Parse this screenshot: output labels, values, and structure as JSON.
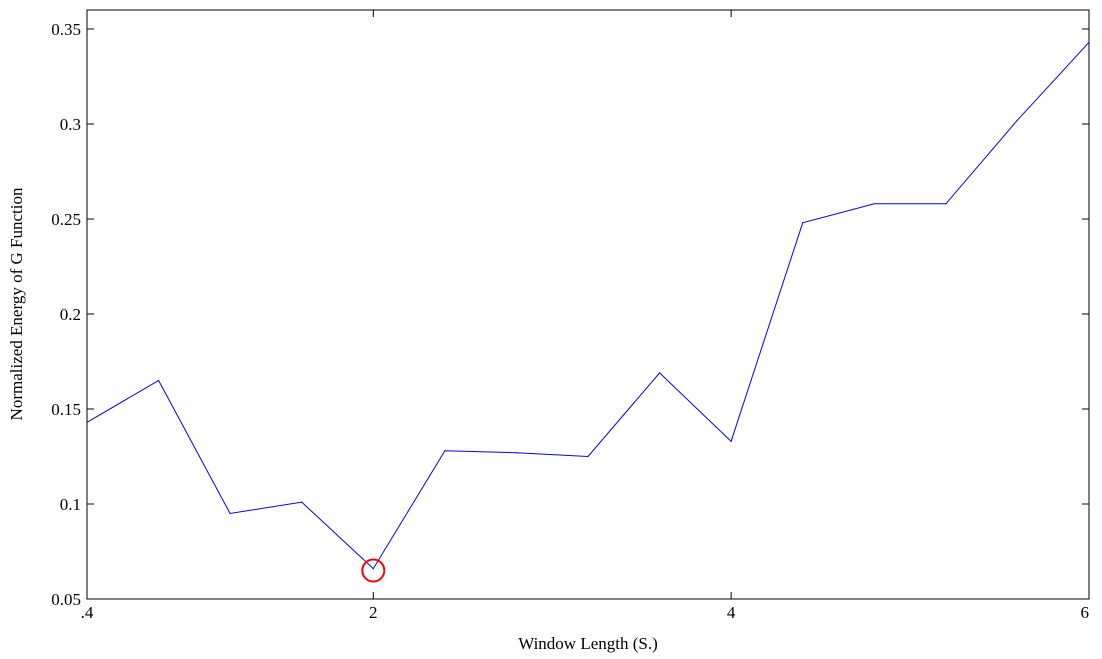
{
  "chart_data": {
    "type": "line",
    "title": "",
    "xlabel": "Window Length (S.)",
    "ylabel": "Normalized Energy of G Function",
    "xlim": [
      0.4,
      6
    ],
    "ylim": [
      0.05,
      0.36
    ],
    "x_ticks": [
      {
        "value": 0.4,
        "label": ".4"
      },
      {
        "value": 2,
        "label": "2"
      },
      {
        "value": 4,
        "label": "4"
      },
      {
        "value": 6,
        "label": "6"
      }
    ],
    "y_ticks": [
      {
        "value": 0.05,
        "label": "0.05"
      },
      {
        "value": 0.1,
        "label": "0.1"
      },
      {
        "value": 0.15,
        "label": "0.15"
      },
      {
        "value": 0.2,
        "label": "0.2"
      },
      {
        "value": 0.25,
        "label": "0.25"
      },
      {
        "value": 0.3,
        "label": "0.3"
      },
      {
        "value": 0.35,
        "label": "0.35"
      }
    ],
    "grid": false,
    "series": [
      {
        "color": "#0000ff",
        "x": [
          0.4,
          0.8,
          1.2,
          1.6,
          2.0,
          2.4,
          2.8,
          3.2,
          3.6,
          4.0,
          4.4,
          4.8,
          5.2,
          5.6,
          6.0
        ],
        "values": [
          0.143,
          0.165,
          0.095,
          0.101,
          0.066,
          0.128,
          0.127,
          0.125,
          0.169,
          0.133,
          0.248,
          0.258,
          0.258,
          0.302,
          0.343
        ]
      }
    ],
    "annotations": [
      {
        "type": "circle-marker",
        "x": 2.0,
        "y": 0.065,
        "color": "#ff0000"
      }
    ]
  }
}
